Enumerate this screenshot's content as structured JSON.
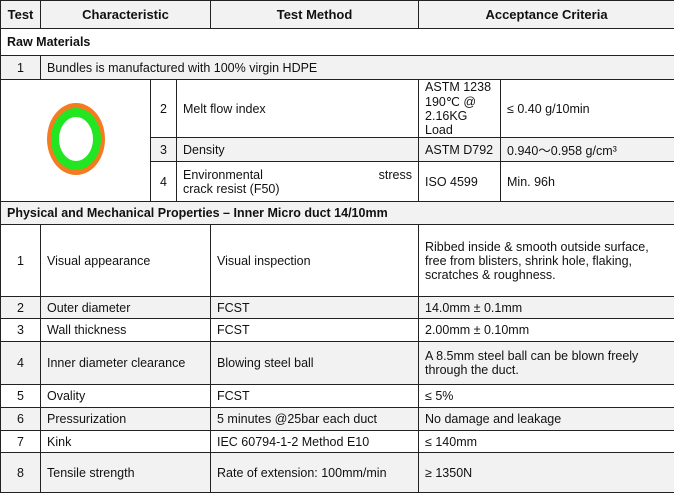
{
  "header": {
    "test": "Test",
    "characteristic": "Characteristic",
    "method": "Test Method",
    "criteria": "Acceptance Criteria"
  },
  "raw": {
    "title": "Raw Materials",
    "row1": {
      "num": "1",
      "text": "Bundles is manufactured with 100% virgin HDPE"
    },
    "rows": [
      {
        "num": "2",
        "char": "Melt flow index",
        "method1": "ASTM 1238",
        "method2": "190℃  @ 2.16KG Load",
        "criteria": "≤ 0.40 g/10min"
      },
      {
        "num": "3",
        "char": "Density",
        "method1": "ASTM D792",
        "criteria": "0.940～0.958 g/cm³"
      },
      {
        "num": "4",
        "char1": "Environmental stress",
        "char2": "crack resist (F50)",
        "method1": "ISO 4599",
        "criteria": "Min. 96h"
      }
    ],
    "icon": "duct-cross-section-icon",
    "colors": {
      "outer": "#f47b20",
      "inner": "#22e622"
    }
  },
  "physical": {
    "title": "Physical and Mechanical Properties – Inner Micro duct 14/10mm",
    "rows": [
      {
        "num": "1",
        "char": "Visual appearance",
        "method": "Visual inspection",
        "criteria": "Ribbed inside & smooth outside surface, free from blisters, shrink hole, flaking, scratches & roughness."
      },
      {
        "num": "2",
        "char": "Outer diameter",
        "method": "FCST",
        "criteria": "14.0mm ± 0.1mm"
      },
      {
        "num": "3",
        "char": "Wall thickness",
        "method": "FCST",
        "criteria": "2.00mm ± 0.10mm"
      },
      {
        "num": "4",
        "char": "Inner diameter clearance",
        "method": "Blowing steel ball",
        "criteria": "A 8.5mm steel ball can be blown freely through the duct."
      },
      {
        "num": "5",
        "char": "Ovality",
        "method": "FCST",
        "criteria": "≤ 5%"
      },
      {
        "num": "6",
        "char": "Pressurization",
        "method": "5 minutes @25bar each duct",
        "criteria": "No damage and leakage"
      },
      {
        "num": "7",
        "char": "Kink",
        "method": "IEC 60794-1-2 Method E10",
        "criteria": "≤ 140mm"
      },
      {
        "num": "8",
        "char": "Tensile strength",
        "method": "Rate of extension: 100mm/min",
        "criteria": "≥ 1350N"
      }
    ]
  }
}
